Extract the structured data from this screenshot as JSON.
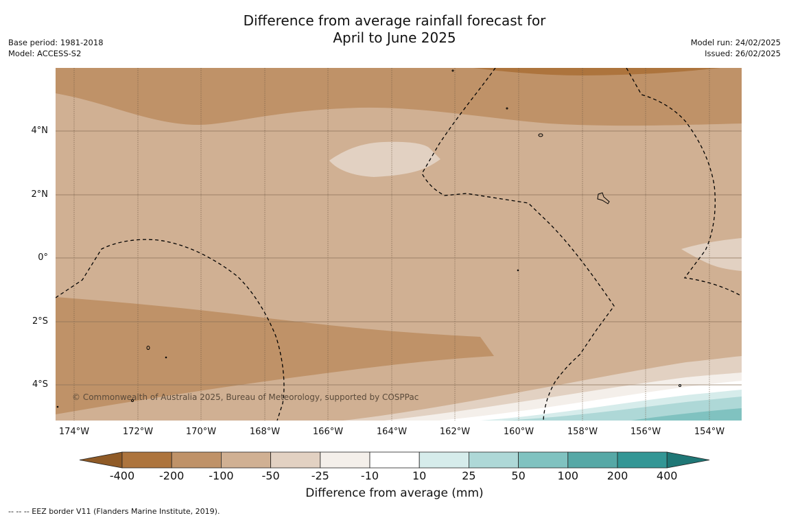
{
  "title_line1": "Difference from average rainfall forecast for",
  "title_line2": "April to June 2025",
  "base_period": "Base period: 1981-2018",
  "model": "Model: ACCESS-S2",
  "model_run": "Model run: 24/02/2025",
  "issued": "Issued: 26/02/2025",
  "copyright": "© Commonwealth of Australia 2025, Bureau of Meteorology, supported by COSPPac",
  "lat_labels": [
    "4°N",
    "2°N",
    "0°",
    "2°S",
    "4°S"
  ],
  "lon_labels": [
    "174°W",
    "172°W",
    "170°W",
    "168°W",
    "166°W",
    "164°W",
    "162°W",
    "160°W",
    "158°W",
    "156°W",
    "154°W"
  ],
  "colorbar": {
    "title": "Difference from average (mm)",
    "ticks": [
      "-400",
      "-200",
      "-100",
      "-50",
      "-25",
      "-10",
      "10",
      "25",
      "50",
      "100",
      "200",
      "400"
    ],
    "colors": [
      "#8f5a26",
      "#ad743d",
      "#bf9268",
      "#d0b093",
      "#e2d1c2",
      "#f4efea",
      "#ffffff",
      "#d6eceb",
      "#aed8d7",
      "#80c2c0",
      "#56a8a6",
      "#339695",
      "#1f7776"
    ]
  },
  "footnote": "--  --  -- EEZ border V11 (Flanders Marine Institute, 2019)."
}
